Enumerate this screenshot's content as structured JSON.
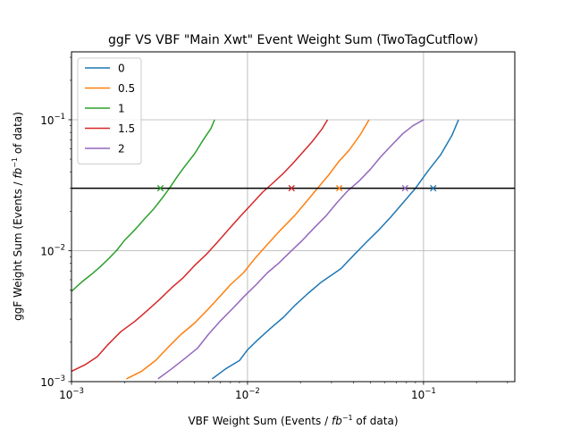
{
  "chart_data": {
    "type": "line",
    "title": "ggF VS VBF \"Main Xwt\" Event Weight Sum (TwoTagCutflow)",
    "xlabel_prefix": "VBF Weight Sum (Events / ",
    "ylabel_prefix": "ggF Weight Sum (Events / ",
    "label_unit_base": "fb",
    "label_unit_exp": "−1",
    "label_suffix": " of data)",
    "xscale": "log",
    "yscale": "log",
    "xlim": [
      0.001,
      0.33
    ],
    "ylim": [
      0.001,
      0.33
    ],
    "grid": true,
    "legend_position": "top-left",
    "x_ticks": [
      {
        "value": 0.001,
        "base": "10",
        "exp": "−3"
      },
      {
        "value": 0.01,
        "base": "10",
        "exp": "−2"
      },
      {
        "value": 0.1,
        "base": "10",
        "exp": "−1"
      }
    ],
    "y_ticks": [
      {
        "value": 0.001,
        "base": "10",
        "exp": "−3"
      },
      {
        "value": 0.01,
        "base": "10",
        "exp": "−2"
      },
      {
        "value": 0.1,
        "base": "10",
        "exp": "−1"
      }
    ],
    "horizontal_line": 0.03,
    "series": [
      {
        "name": "0",
        "color": "#1f77b4",
        "x": [
          0.0063,
          0.0075,
          0.009,
          0.01,
          0.0115,
          0.0135,
          0.016,
          0.0185,
          0.022,
          0.026,
          0.03,
          0.034,
          0.04,
          0.047,
          0.056,
          0.065,
          0.076,
          0.09,
          0.105,
          0.125,
          0.145,
          0.158
        ],
        "y": [
          0.00105,
          0.00125,
          0.00145,
          0.00175,
          0.0021,
          0.00255,
          0.0031,
          0.0038,
          0.0047,
          0.0057,
          0.0065,
          0.0073,
          0.0092,
          0.0115,
          0.0145,
          0.018,
          0.023,
          0.03,
          0.04,
          0.054,
          0.076,
          0.1
        ]
      },
      {
        "name": "0.5",
        "color": "#ff7f0e",
        "x": [
          0.00205,
          0.0025,
          0.003,
          0.0035,
          0.0042,
          0.005,
          0.006,
          0.007,
          0.008,
          0.0095,
          0.011,
          0.013,
          0.0155,
          0.0185,
          0.0215,
          0.025,
          0.029,
          0.033,
          0.038,
          0.044,
          0.049
        ],
        "y": [
          0.00105,
          0.0012,
          0.00145,
          0.0018,
          0.0023,
          0.0028,
          0.0036,
          0.0045,
          0.0055,
          0.0068,
          0.0087,
          0.0112,
          0.0145,
          0.0185,
          0.0235,
          0.03,
          0.038,
          0.048,
          0.059,
          0.078,
          0.1
        ]
      },
      {
        "name": "1",
        "color": "#2ca02c",
        "x": [
          0.001,
          0.00115,
          0.0013,
          0.00145,
          0.0016,
          0.0018,
          0.002,
          0.0023,
          0.0026,
          0.0029,
          0.0033,
          0.0036,
          0.004,
          0.0044,
          0.005,
          0.0056,
          0.0062,
          0.0065
        ],
        "y": [
          0.0049,
          0.0058,
          0.0066,
          0.0075,
          0.0085,
          0.01,
          0.012,
          0.0145,
          0.0175,
          0.0205,
          0.0255,
          0.03,
          0.037,
          0.044,
          0.055,
          0.07,
          0.086,
          0.1
        ]
      },
      {
        "name": "1.5",
        "color": "#d62728",
        "x": [
          0.001,
          0.0012,
          0.0014,
          0.0016,
          0.0019,
          0.0023,
          0.0027,
          0.0032,
          0.0037,
          0.0043,
          0.005,
          0.0058,
          0.0067,
          0.0078,
          0.009,
          0.0105,
          0.0122,
          0.014,
          0.016,
          0.018,
          0.0205,
          0.0235,
          0.0265,
          0.0285
        ],
        "y": [
          0.0012,
          0.00135,
          0.00155,
          0.0019,
          0.0024,
          0.0029,
          0.0035,
          0.0043,
          0.0052,
          0.0062,
          0.0077,
          0.0093,
          0.0115,
          0.0145,
          0.018,
          0.0225,
          0.028,
          0.033,
          0.039,
          0.046,
          0.056,
          0.069,
          0.085,
          0.1
        ]
      },
      {
        "name": "2",
        "color": "#9467bd",
        "x": [
          0.0031,
          0.0037,
          0.0044,
          0.0052,
          0.006,
          0.007,
          0.0082,
          0.0096,
          0.0112,
          0.013,
          0.015,
          0.0175,
          0.0205,
          0.024,
          0.028,
          0.032,
          0.037,
          0.043,
          0.05,
          0.057,
          0.066,
          0.076,
          0.087,
          0.1
        ],
        "y": [
          0.00105,
          0.00125,
          0.0015,
          0.0018,
          0.0023,
          0.0029,
          0.0036,
          0.0045,
          0.0055,
          0.0068,
          0.008,
          0.0098,
          0.012,
          0.015,
          0.0185,
          0.023,
          0.0285,
          0.034,
          0.042,
          0.052,
          0.064,
          0.078,
          0.09,
          0.1
        ]
      }
    ],
    "markers": [
      {
        "series": "1",
        "x": 0.0032,
        "y": 0.03,
        "symbol": "x",
        "color": "#2ca02c"
      },
      {
        "series": "1.5",
        "x": 0.0178,
        "y": 0.03,
        "symbol": "x",
        "color": "#d62728"
      },
      {
        "series": "0.5",
        "x": 0.0332,
        "y": 0.03,
        "symbol": "x",
        "color": "#ff7f0e"
      },
      {
        "series": "2",
        "x": 0.0785,
        "y": 0.03,
        "symbol": "x",
        "color": "#9467bd"
      },
      {
        "series": "0",
        "x": 0.1135,
        "y": 0.03,
        "symbol": "x",
        "color": "#1f77b4"
      }
    ]
  }
}
